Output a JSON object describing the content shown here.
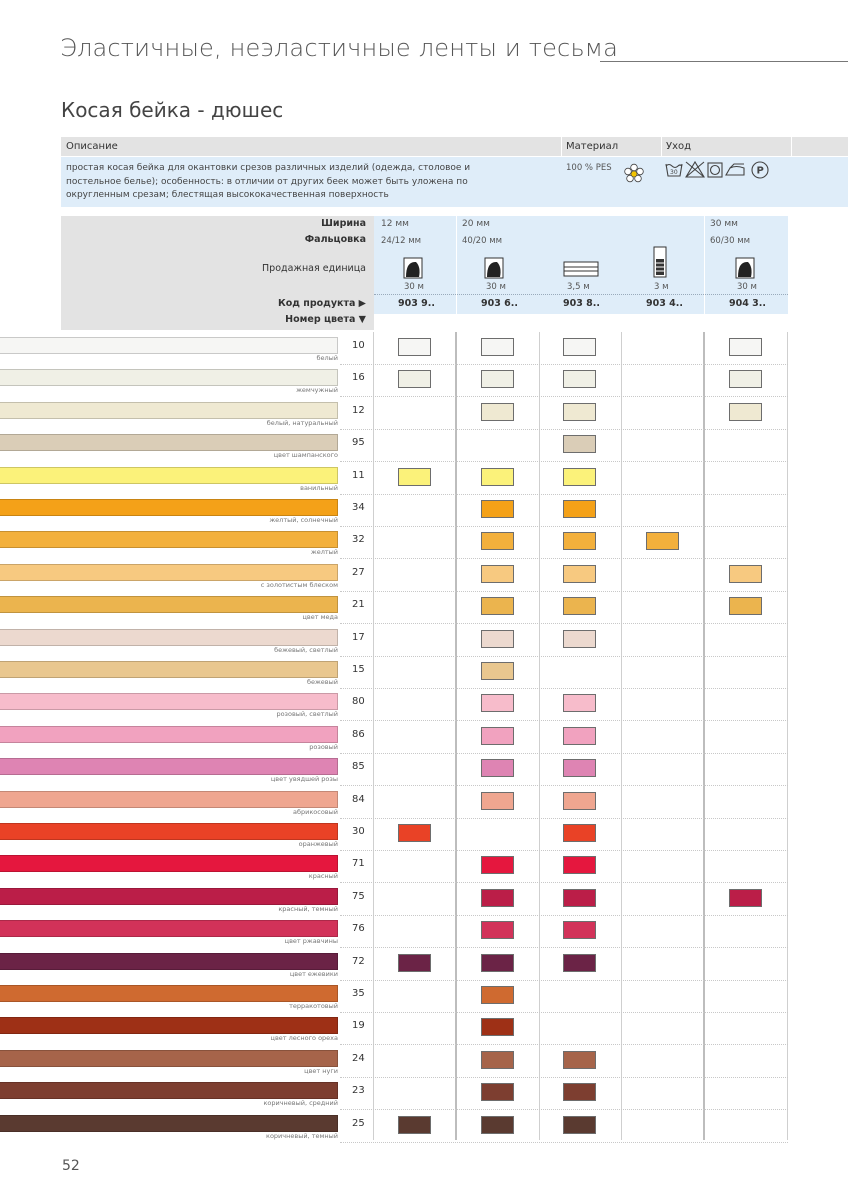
{
  "header": {
    "section_title": "Эластичные, неэластичные ленты и тесьма",
    "product_title": "Косая бейка - дюшес"
  },
  "info_table": {
    "col_description": "Описание",
    "col_material": "Материал",
    "col_care": "Уход",
    "description_lines": [
      "простая косая бейка для окантовки срезов различных изделий (одежда, столовое и",
      "постельное белье); особенность: в отличии от других беек может быть уложена по",
      "округленным срезам; блестящая высококачественная поверхность"
    ],
    "material_value": "100 % PES",
    "care_symbols": [
      "wash-30-icon",
      "no-bleach-icon",
      "tumble-dry-icon",
      "iron-icon",
      "dry-clean-p-icon"
    ]
  },
  "spec": {
    "width_label": "Ширина",
    "fold_label": "Фальцовка",
    "unit_label": "Продажная единица",
    "code_label": "Код продукта ▶",
    "color_label": "Номер цвета ▼",
    "widths": [
      "12 мм",
      "20 мм",
      "30 мм"
    ],
    "folds": [
      "24/12 мм",
      "40/20 мм",
      "60/30 мм"
    ],
    "units": [
      "30 м",
      "30 м",
      "3,5 м",
      "3 м",
      "30 м"
    ],
    "codes": [
      "903 9..",
      "903 6..",
      "903 8..",
      "903 4..",
      "904 3.."
    ]
  },
  "colors": [
    {
      "num": "10",
      "name": "белый",
      "hex": "#f6f6f4",
      "avail": [
        1,
        1,
        1,
        0,
        1
      ]
    },
    {
      "num": "16",
      "name": "жемчужный",
      "hex": "#f0f0e6",
      "avail": [
        1,
        1,
        1,
        0,
        1
      ]
    },
    {
      "num": "12",
      "name": "белый, натуральный",
      "hex": "#efe9d2",
      "avail": [
        0,
        1,
        1,
        0,
        1
      ]
    },
    {
      "num": "95",
      "name": "цвет шампанского",
      "hex": "#dacdb7",
      "avail": [
        0,
        0,
        1,
        0,
        0
      ]
    },
    {
      "num": "11",
      "name": "ванильный",
      "hex": "#fbf27a",
      "avail": [
        1,
        1,
        1,
        0,
        0
      ]
    },
    {
      "num": "34",
      "name": "желтый, солнечный",
      "hex": "#f4a118",
      "avail": [
        0,
        1,
        1,
        0,
        0
      ]
    },
    {
      "num": "32",
      "name": "желтый",
      "hex": "#f3b03c",
      "avail": [
        0,
        1,
        1,
        1,
        0
      ]
    },
    {
      "num": "27",
      "name": "с золотистым блеском",
      "hex": "#f7c980",
      "avail": [
        0,
        1,
        1,
        0,
        1
      ]
    },
    {
      "num": "21",
      "name": "цвет меда",
      "hex": "#ebb44e",
      "avail": [
        0,
        1,
        1,
        0,
        1
      ]
    },
    {
      "num": "17",
      "name": "бежевый, светлый",
      "hex": "#ecd9cf",
      "avail": [
        0,
        1,
        1,
        0,
        0
      ]
    },
    {
      "num": "15",
      "name": "бежевый",
      "hex": "#e9c78f",
      "avail": [
        0,
        1,
        0,
        0,
        0
      ]
    },
    {
      "num": "80",
      "name": "розовый, светлый",
      "hex": "#f7bccb",
      "avail": [
        0,
        1,
        1,
        0,
        0
      ]
    },
    {
      "num": "86",
      "name": "розовый",
      "hex": "#f1a2bf",
      "avail": [
        0,
        1,
        1,
        0,
        0
      ]
    },
    {
      "num": "85",
      "name": "цвет увядшей розы",
      "hex": "#de84b3",
      "avail": [
        0,
        1,
        1,
        0,
        0
      ]
    },
    {
      "num": "84",
      "name": "абрикосовый",
      "hex": "#efa690",
      "avail": [
        0,
        1,
        1,
        0,
        0
      ]
    },
    {
      "num": "30",
      "name": "оранжевый",
      "hex": "#e94226",
      "avail": [
        1,
        0,
        1,
        0,
        0
      ]
    },
    {
      "num": "71",
      "name": "красный",
      "hex": "#e5173e",
      "avail": [
        0,
        1,
        1,
        0,
        0
      ]
    },
    {
      "num": "75",
      "name": "красный, темный",
      "hex": "#bb1e48",
      "avail": [
        0,
        1,
        1,
        0,
        1
      ]
    },
    {
      "num": "76",
      "name": "цвет ржавчины",
      "hex": "#d23259",
      "avail": [
        0,
        1,
        1,
        0,
        0
      ]
    },
    {
      "num": "72",
      "name": "цвет ежевики",
      "hex": "#6b2346",
      "avail": [
        1,
        1,
        1,
        0,
        0
      ]
    },
    {
      "num": "35",
      "name": "терракотовый",
      "hex": "#cf6a30",
      "avail": [
        0,
        1,
        0,
        0,
        0
      ]
    },
    {
      "num": "19",
      "name": "цвет лесного ореха",
      "hex": "#9e3016",
      "avail": [
        0,
        1,
        0,
        0,
        0
      ]
    },
    {
      "num": "24",
      "name": "цвет нуги",
      "hex": "#a6644a",
      "avail": [
        0,
        1,
        1,
        0,
        0
      ]
    },
    {
      "num": "23",
      "name": "коричневый, средний",
      "hex": "#7d3e30",
      "avail": [
        0,
        1,
        1,
        0,
        0
      ]
    },
    {
      "num": "25",
      "name": "коричневый, темный",
      "hex": "#5a3a30",
      "avail": [
        1,
        1,
        1,
        0,
        0
      ]
    }
  ],
  "page_number": "52"
}
